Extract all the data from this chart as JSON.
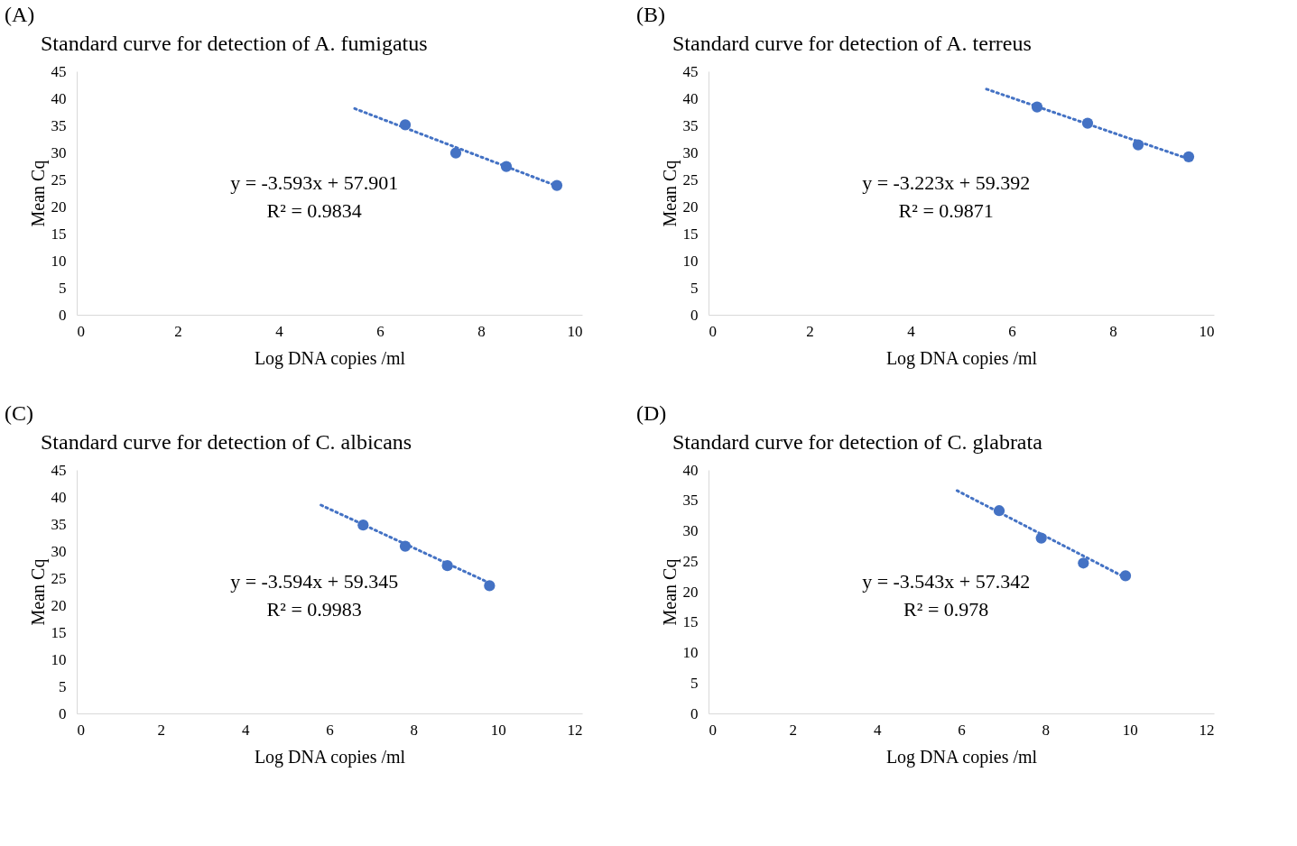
{
  "chart_data": [
    {
      "type": "scatter",
      "title": "Standard curve for detection of A. fumigatus",
      "xlabel": "Log  DNA copies /ml",
      "ylabel": "Mean Cq",
      "xlim": [
        0,
        10
      ],
      "xticks": [
        0,
        2,
        4,
        6,
        8,
        10
      ],
      "ylim": [
        0,
        45
      ],
      "yticks": [
        0,
        5,
        10,
        15,
        20,
        25,
        30,
        35,
        40,
        45
      ],
      "annotations": [
        "(A)",
        "y = -3.593x + 57.901",
        "R² = 0.9834"
      ],
      "series": [
        {
          "color": "#4472c4",
          "marker": "circle",
          "x": [
            6.5,
            7.5,
            8.5,
            9.5
          ],
          "values": [
            35.1,
            29.9,
            27.4,
            23.9
          ]
        },
        {
          "type": "line",
          "color": "#4472c4",
          "line_style": "dotted",
          "x": [
            5.5,
            9.5
          ],
          "values": [
            38.1,
            23.8
          ]
        }
      ]
    },
    {
      "type": "scatter",
      "title": "Standard curve for detection of A. terreus",
      "xlabel": "Log  DNA copies /ml",
      "ylabel": "Mean Cq",
      "xlim": [
        0,
        10
      ],
      "xticks": [
        0,
        2,
        4,
        6,
        8,
        10
      ],
      "ylim": [
        0,
        45
      ],
      "yticks": [
        0,
        5,
        10,
        15,
        20,
        25,
        30,
        35,
        40,
        45
      ],
      "annotations": [
        "(B)",
        "y = -3.223x + 59.392",
        "R² = 0.9871"
      ],
      "series": [
        {
          "color": "#4472c4",
          "marker": "circle",
          "x": [
            6.5,
            7.5,
            8.5,
            9.5
          ],
          "values": [
            38.4,
            35.4,
            31.4,
            29.2
          ]
        },
        {
          "type": "line",
          "color": "#4472c4",
          "line_style": "dotted",
          "x": [
            5.5,
            9.5
          ],
          "values": [
            41.7,
            28.8
          ]
        }
      ]
    },
    {
      "type": "scatter",
      "title": "Standard curve for detection of C. albicans",
      "xlabel": "Log  DNA copies /ml",
      "ylabel": "Mean Cq",
      "xlim": [
        0,
        12
      ],
      "xticks": [
        0,
        2,
        4,
        6,
        8,
        10,
        12
      ],
      "ylim": [
        0,
        45
      ],
      "yticks": [
        0,
        5,
        10,
        15,
        20,
        25,
        30,
        35,
        40,
        45
      ],
      "annotations": [
        "(C)",
        "y = -3.594x + 59.345",
        "R² = 0.9983"
      ],
      "series": [
        {
          "color": "#4472c4",
          "marker": "circle",
          "x": [
            6.8,
            7.8,
            8.8,
            9.8
          ],
          "values": [
            34.8,
            30.9,
            27.3,
            23.6
          ]
        },
        {
          "type": "line",
          "color": "#4472c4",
          "line_style": "dotted",
          "x": [
            5.8,
            9.8
          ],
          "values": [
            38.5,
            24.1
          ]
        }
      ]
    },
    {
      "type": "scatter",
      "title": "Standard curve for detection of C. glabrata",
      "xlabel": "Log  DNA copies /ml",
      "ylabel": "Mean Cq",
      "xlim": [
        0,
        12
      ],
      "xticks": [
        0,
        2,
        4,
        6,
        8,
        10,
        12
      ],
      "ylim": [
        0,
        40
      ],
      "yticks": [
        0,
        5,
        10,
        15,
        20,
        25,
        30,
        35,
        40
      ],
      "annotations": [
        "(D)",
        "y = -3.543x + 57.342",
        "R² = 0.978"
      ],
      "series": [
        {
          "color": "#4472c4",
          "marker": "circle",
          "x": [
            6.9,
            7.9,
            8.9,
            9.9
          ],
          "values": [
            33.3,
            28.8,
            24.7,
            22.6
          ]
        },
        {
          "type": "line",
          "color": "#4472c4",
          "line_style": "dotted",
          "x": [
            5.9,
            9.9
          ],
          "values": [
            36.6,
            22.3
          ]
        }
      ]
    }
  ]
}
